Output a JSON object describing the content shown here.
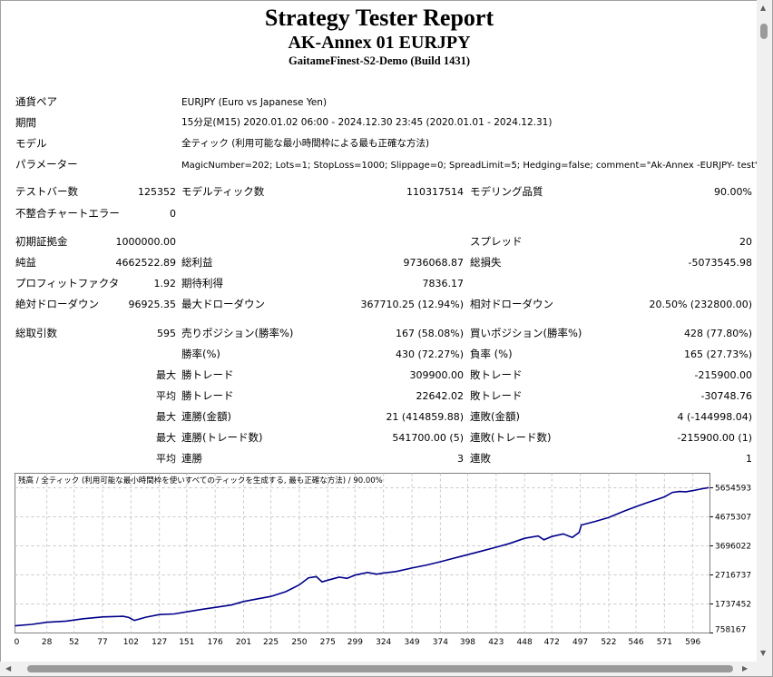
{
  "report": {
    "title": "Strategy Tester Report",
    "subtitle": "AK-Annex 01 EURJPY",
    "server": "GaitameFinest-S2-Demo (Build 1431)"
  },
  "info": {
    "symbol_label": "通貨ペア",
    "symbol_value": "EURJPY (Euro vs Japanese Yen)",
    "period_label": "期間",
    "period_value": "15分足(M15) 2020.01.02 06:00 - 2024.12.30 23:45 (2020.01.01 - 2024.12.31)",
    "model_label": "モデル",
    "model_value": "全ティック (利用可能な最小時間枠による最も正確な方法)",
    "params_label": "パラメーター",
    "params_value": "MagicNumber=202; Lots=1; StopLoss=1000; Slippage=0; SpreadLimit=5; Hedging=false; comment=\"Ak-Annex -EURJPY- test\";"
  },
  "stats": {
    "bars_label": "テストバー数",
    "bars_value": "125352",
    "ticks_label": "モデルティック数",
    "ticks_value": "110317514",
    "quality_label": "モデリング品質",
    "quality_value": "90.00%",
    "errors_label": "不整合チャートエラー",
    "errors_value": "0",
    "deposit_label": "初期証拠金",
    "deposit_value": "1000000.00",
    "spread_label": "スプレッド",
    "spread_value": "20",
    "net_label": "純益",
    "net_value": "4662522.89",
    "gross_profit_label": "総利益",
    "gross_profit_value": "9736068.87",
    "gross_loss_label": "総損失",
    "gross_loss_value": "-5073545.98",
    "pf_label": "プロフィットファクタ",
    "pf_value": "1.92",
    "expected_label": "期待利得",
    "expected_value": "7836.17",
    "abs_dd_label": "絶対ドローダウン",
    "abs_dd_value": "96925.35",
    "max_dd_label": "最大ドローダウン",
    "max_dd_value": "367710.25 (12.94%)",
    "rel_dd_label": "相対ドローダウン",
    "rel_dd_value": "20.50% (232800.00)",
    "trades_label": "総取引数",
    "trades_value": "595",
    "short_label": "売りポジション(勝率%)",
    "short_value": "167 (58.08%)",
    "long_label": "買いポジション(勝率%)",
    "long_value": "428 (77.80%)",
    "win_label": "勝率(%)",
    "win_value": "430 (72.27%)",
    "loss_label": "負率 (%)",
    "loss_value": "165 (27.73%)",
    "max_label": "最大",
    "avg_label": "平均",
    "largest_win_label": "勝トレード",
    "largest_win_value": "309900.00",
    "largest_loss_label": "敗トレード",
    "largest_loss_value": "-215900.00",
    "avg_win_label": "勝トレード",
    "avg_win_value": "22642.02",
    "avg_loss_label": "敗トレード",
    "avg_loss_value": "-30748.76",
    "max_consec_wins_label": "連勝(金額)",
    "max_consec_wins_value": "21 (414859.88)",
    "max_consec_losses_label": "連敗(金額)",
    "max_consec_losses_value": "4 (-144998.04)",
    "max_consec_profit_label": "連勝(トレード数)",
    "max_consec_profit_value": "541700.00 (5)",
    "max_consec_loss_label": "連敗(トレード数)",
    "max_consec_loss_value": "-215900.00 (1)",
    "avg_consec_wins_label": "連勝",
    "avg_consec_wins_value": "3",
    "avg_consec_losses_label": "連敗",
    "avg_consec_losses_value": "1"
  },
  "colors": {
    "line": "#00008b",
    "grid": "#c8c8c8",
    "frame": "#a0a0a0",
    "scrollbar": "#f0f0f0"
  },
  "icons": {
    "scroll_up": "triangle-up-icon",
    "scroll_down": "triangle-down-icon",
    "scroll_left": "triangle-left-icon",
    "scroll_right": "triangle-right-icon"
  },
  "chart_data": {
    "type": "line",
    "title": "残高 / 全ティック (利用可能な最小時間枠を使いすべてのティックを生成する, 最も正確な方法) / 90.00%",
    "x_ticks": [
      0,
      28,
      52,
      77,
      102,
      127,
      151,
      176,
      201,
      225,
      250,
      275,
      299,
      324,
      349,
      374,
      398,
      423,
      448,
      472,
      497,
      522,
      546,
      571,
      596
    ],
    "y_ticks": [
      758167,
      1737452,
      2716737,
      3696022,
      4675307,
      5654593
    ],
    "xlim": [
      0,
      611
    ],
    "ylim": [
      758167,
      6144235
    ],
    "grid": true,
    "series": [
      {
        "values": [
          [
            0,
            1000000
          ],
          [
            15,
            1050000
          ],
          [
            28,
            1120000
          ],
          [
            45,
            1160000
          ],
          [
            60,
            1240000
          ],
          [
            77,
            1300000
          ],
          [
            95,
            1320000
          ],
          [
            100,
            1280000
          ],
          [
            105,
            1180000
          ],
          [
            115,
            1290000
          ],
          [
            127,
            1380000
          ],
          [
            140,
            1400000
          ],
          [
            151,
            1470000
          ],
          [
            165,
            1560000
          ],
          [
            176,
            1620000
          ],
          [
            190,
            1700000
          ],
          [
            201,
            1820000
          ],
          [
            212,
            1900000
          ],
          [
            225,
            1990000
          ],
          [
            238,
            2150000
          ],
          [
            250,
            2380000
          ],
          [
            258,
            2620000
          ],
          [
            265,
            2660000
          ],
          [
            270,
            2480000
          ],
          [
            275,
            2540000
          ],
          [
            285,
            2640000
          ],
          [
            292,
            2600000
          ],
          [
            299,
            2710000
          ],
          [
            310,
            2800000
          ],
          [
            318,
            2740000
          ],
          [
            324,
            2780000
          ],
          [
            335,
            2830000
          ],
          [
            349,
            2950000
          ],
          [
            362,
            3050000
          ],
          [
            374,
            3160000
          ],
          [
            385,
            3270000
          ],
          [
            398,
            3400000
          ],
          [
            410,
            3520000
          ],
          [
            423,
            3650000
          ],
          [
            435,
            3780000
          ],
          [
            448,
            3950000
          ],
          [
            460,
            4030000
          ],
          [
            465,
            3900000
          ],
          [
            472,
            4010000
          ],
          [
            482,
            4100000
          ],
          [
            490,
            3980000
          ],
          [
            496,
            4150000
          ],
          [
            498,
            4400000
          ],
          [
            510,
            4520000
          ],
          [
            522,
            4650000
          ],
          [
            535,
            4860000
          ],
          [
            546,
            5020000
          ],
          [
            555,
            5140000
          ],
          [
            565,
            5270000
          ],
          [
            571,
            5350000
          ],
          [
            578,
            5500000
          ],
          [
            584,
            5530000
          ],
          [
            590,
            5520000
          ],
          [
            596,
            5560000
          ],
          [
            604,
            5620000
          ],
          [
            610,
            5660000
          ]
        ]
      }
    ]
  }
}
